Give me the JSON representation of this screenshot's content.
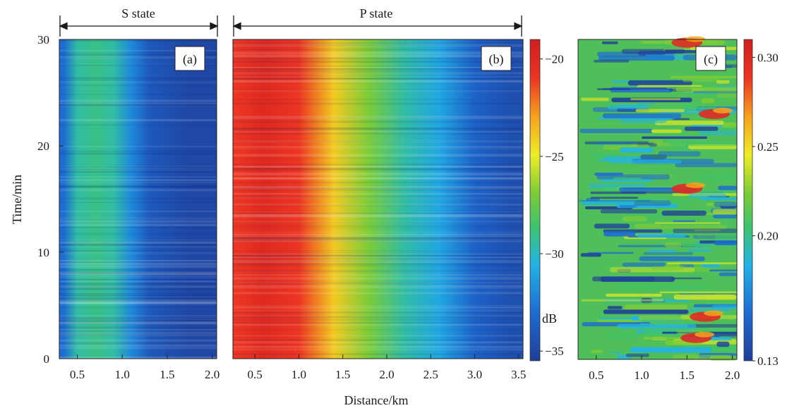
{
  "figure": {
    "ylabel": "Time/min",
    "xlabel": "Distance/km"
  },
  "chart_data": [
    {
      "type": "heatmap",
      "panel_label": "(a)",
      "header": "S state",
      "ylabel": "Time/min",
      "xlim": [
        0.3,
        2.05
      ],
      "ylim": [
        0,
        30
      ],
      "xticks": [
        "0.5",
        "1.0",
        "1.5",
        "2.0"
      ],
      "yticks": [
        "0",
        "10",
        "20",
        "30"
      ],
      "colorbar": "dB",
      "distance_km": [
        0.35,
        0.5,
        0.7,
        0.9,
        1.1,
        1.3,
        1.5,
        1.75,
        2.0
      ],
      "mean_power_db": [
        -33,
        -29.5,
        -29,
        -29.5,
        -32,
        -34,
        -34.5,
        -35,
        -35
      ]
    },
    {
      "type": "heatmap",
      "panel_label": "(b)",
      "header": "P state",
      "xlim": [
        0.25,
        3.55
      ],
      "ylim": [
        0,
        30
      ],
      "xticks": [
        "0.5",
        "1.0",
        "1.5",
        "2.0",
        "2.5",
        "3.0",
        "3.5"
      ],
      "colorbar": "dB",
      "distance_km": [
        0.3,
        0.6,
        1.0,
        1.4,
        1.8,
        2.2,
        2.6,
        3.0,
        3.4
      ],
      "mean_power_db": [
        -21,
        -20,
        -21,
        -24,
        -27,
        -29.5,
        -31,
        -33.5,
        -34.5
      ]
    },
    {
      "type": "heatmap",
      "panel_label": "(c)",
      "xlim": [
        0.3,
        2.05
      ],
      "ylim": [
        0,
        30
      ],
      "xticks": [
        "0.5",
        "1.0",
        "1.5",
        "2.0"
      ],
      "value_range": [
        0.13,
        0.31
      ],
      "hot_spots": [
        {
          "distance_km": 1.6,
          "time_min": 2
        },
        {
          "distance_km": 1.7,
          "time_min": 4
        },
        {
          "distance_km": 1.5,
          "time_min": 16
        },
        {
          "distance_km": 1.8,
          "time_min": 23
        },
        {
          "distance_km": 1.5,
          "time_min": 29.7
        }
      ]
    }
  ],
  "colorbars": [
    {
      "name": "dB scale",
      "min": -35.5,
      "max": -19,
      "ticks": [
        "−20",
        "−25",
        "−30",
        "−35"
      ],
      "unit": "dB"
    },
    {
      "name": "ratio scale",
      "min": 0.13,
      "max": 0.31,
      "ticks": [
        "0.30",
        "0.25",
        "0.20",
        "0.13"
      ]
    }
  ]
}
